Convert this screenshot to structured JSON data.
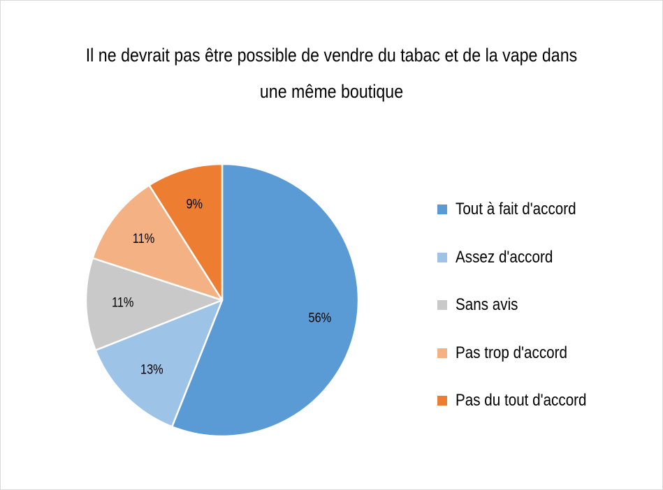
{
  "chart_data": {
    "type": "pie",
    "title": "Il ne devrait pas être possible de vendre du tabac et de la vape dans une même boutique",
    "slices": [
      {
        "name": "Tout à fait d'accord",
        "value": 56,
        "label": "56%",
        "color": "#5b9bd5"
      },
      {
        "name": "Assez d'accord",
        "value": 13,
        "label": "13%",
        "color": "#9dc3e6"
      },
      {
        "name": "Sans avis",
        "value": 11,
        "label": "11%",
        "color": "#c9c9c9"
      },
      {
        "name": "Pas trop d'accord",
        "value": 11,
        "label": "11%",
        "color": "#f4b183"
      },
      {
        "name": "Pas du tout d'accord",
        "value": 9,
        "label": "9%",
        "color": "#ed7d31"
      }
    ],
    "legend_position": "right",
    "start_angle": "12 o'clock",
    "direction": "clockwise"
  }
}
